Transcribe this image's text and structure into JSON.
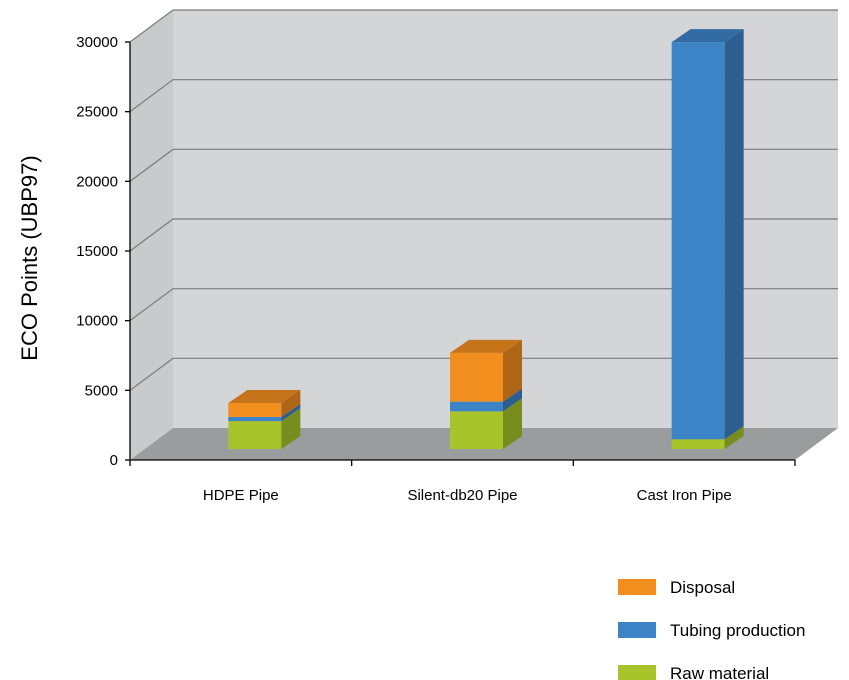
{
  "chart_data": {
    "type": "bar",
    "stacked": true,
    "three_d": true,
    "title": "",
    "xlabel": "",
    "ylabel": "ECO Points (UBP97)",
    "ylim": [
      0,
      30000
    ],
    "yticks": [
      0,
      5000,
      10000,
      15000,
      20000,
      25000,
      30000
    ],
    "ytick_labels": [
      "0",
      "5000",
      "10000",
      "15000",
      "20000",
      "25000",
      "30000"
    ],
    "grid": true,
    "legend_position": "bottom-right",
    "categories": [
      "HDPE Pipe",
      "Silent-db20 Pipe",
      "Cast Iron Pipe"
    ],
    "series": [
      {
        "name": "Raw material",
        "color": "#A8C42A",
        "values": [
          2000,
          2700,
          700
        ]
      },
      {
        "name": "Tubing production",
        "color": "#3D84C6",
        "values": [
          300,
          700,
          28500
        ]
      },
      {
        "name": "Disposal",
        "color": "#F28E1E",
        "values": [
          1000,
          3500,
          0
        ]
      }
    ],
    "legend_order": [
      "Disposal",
      "Tubing production",
      "Raw material"
    ]
  }
}
